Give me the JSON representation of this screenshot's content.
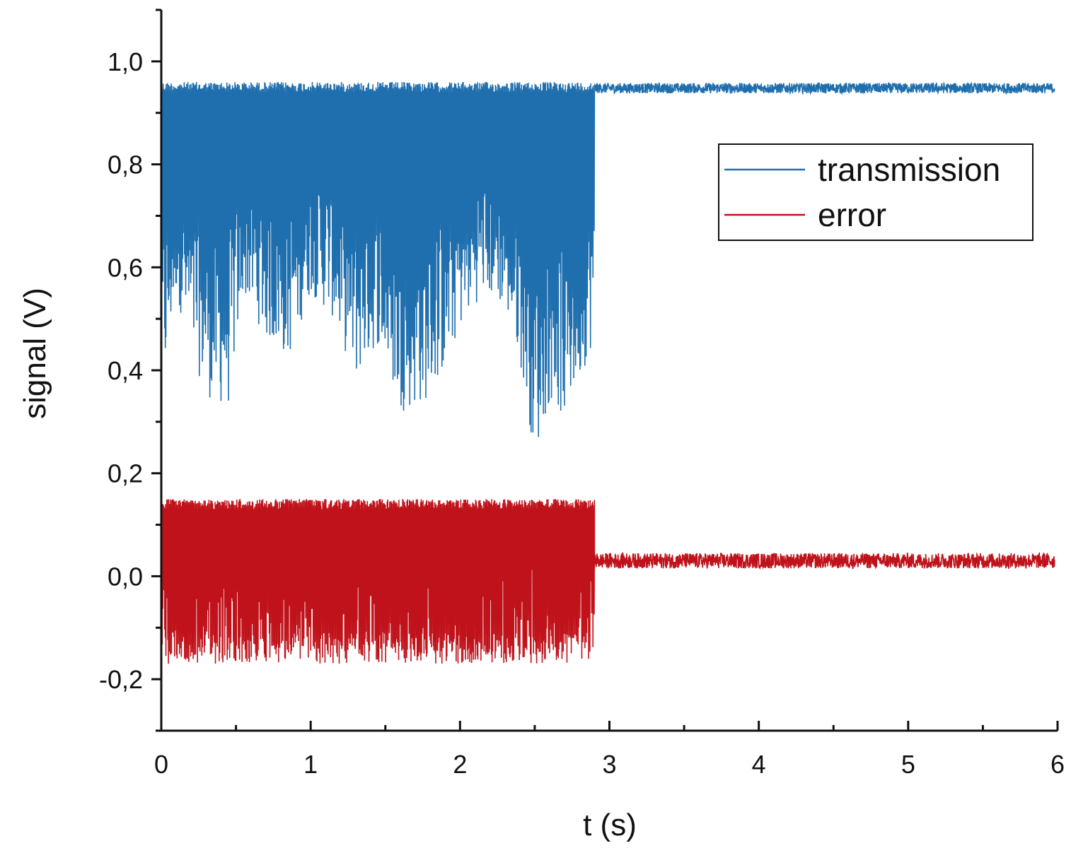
{
  "chart_data": {
    "type": "line",
    "xlabel": "t (s)",
    "ylabel": "signal (V)",
    "xlim": [
      0,
      6
    ],
    "ylim": [
      -0.3,
      1.1
    ],
    "x_ticks": [
      0,
      1,
      2,
      3,
      4,
      5,
      6
    ],
    "x_tick_labels": [
      "0",
      "1",
      "2",
      "3",
      "4",
      "5",
      "6"
    ],
    "y_ticks": [
      -0.2,
      0.0,
      0.2,
      0.4,
      0.6,
      0.8,
      1.0
    ],
    "y_tick_labels": [
      "-0,2",
      "0,0",
      "0,2",
      "0,4",
      "0,6",
      "0,8",
      "1,0"
    ],
    "grid": false,
    "legend_position": "upper right",
    "series": [
      {
        "name": "transmission",
        "color": "#1f6fae",
        "segments": [
          {
            "t_range": [
              0.0,
              2.9
            ],
            "behavior": "rapid oscillation",
            "max": 0.96,
            "envelope_min": [
              [
                0.0,
                0.32
              ],
              [
                0.1,
                0.55
              ],
              [
                0.2,
                0.42
              ],
              [
                0.35,
                0.33
              ],
              [
                0.45,
                0.33
              ],
              [
                0.55,
                0.55
              ],
              [
                0.7,
                0.46
              ],
              [
                0.85,
                0.42
              ],
              [
                1.0,
                0.55
              ],
              [
                1.15,
                0.5
              ],
              [
                1.3,
                0.38
              ],
              [
                1.45,
                0.45
              ],
              [
                1.6,
                0.32
              ],
              [
                1.75,
                0.33
              ],
              [
                1.9,
                0.4
              ],
              [
                2.0,
                0.48
              ],
              [
                2.15,
                0.55
              ],
              [
                2.3,
                0.52
              ],
              [
                2.4,
                0.42
              ],
              [
                2.5,
                0.23
              ],
              [
                2.6,
                0.34
              ],
              [
                2.7,
                0.3
              ],
              [
                2.8,
                0.38
              ],
              [
                2.9,
                0.46
              ]
            ]
          },
          {
            "t_range": [
              2.9,
              5.98
            ],
            "behavior": "steady with noise",
            "mean": 0.948,
            "noise": 0.01
          }
        ]
      },
      {
        "name": "error",
        "color": "#c0121a",
        "segments": [
          {
            "t_range": [
              0.0,
              2.9
            ],
            "behavior": "rapid oscillation",
            "max": 0.15,
            "min": -0.17
          },
          {
            "t_range": [
              2.9,
              5.98
            ],
            "behavior": "steady with noise",
            "mean": 0.03,
            "noise": 0.015
          }
        ]
      }
    ]
  }
}
